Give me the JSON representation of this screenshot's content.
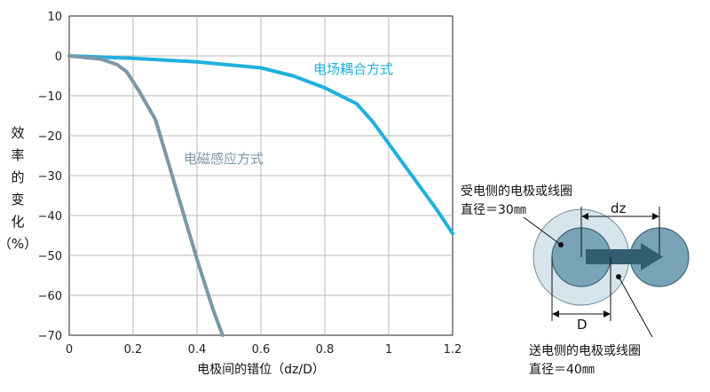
{
  "chart_data": {
    "type": "line",
    "title": "",
    "xlabel": "电极间的错位（dz/D）",
    "ylabel_chars": [
      "效",
      "率",
      "的",
      "变",
      "化",
      "（%）"
    ],
    "xlim": [
      0,
      1.2
    ],
    "ylim": [
      -70,
      10
    ],
    "x_ticks": [
      0,
      0.2,
      0.4,
      0.6,
      0.8,
      1,
      1.2
    ],
    "x_tick_labels": [
      "0",
      "0.2",
      "0.4",
      "0.6",
      "0.8",
      "1",
      "1.2"
    ],
    "y_ticks": [
      10,
      0,
      -10,
      -20,
      -30,
      -40,
      -50,
      -60,
      -70
    ],
    "y_tick_labels": [
      "10",
      "0",
      "−10",
      "−20",
      "−30",
      "−40",
      "−50",
      "−60",
      "−70"
    ],
    "grid": true,
    "series": [
      {
        "name": "电场耦合方式",
        "color": "#1fb0de",
        "points": [
          [
            0,
            0
          ],
          [
            0.2,
            -0.6
          ],
          [
            0.4,
            -1.5
          ],
          [
            0.6,
            -3.0
          ],
          [
            0.7,
            -5.0
          ],
          [
            0.8,
            -8.0
          ],
          [
            0.9,
            -12.0
          ],
          [
            0.95,
            -16.5
          ],
          [
            1.0,
            -22.0
          ],
          [
            1.05,
            -27.5
          ],
          [
            1.1,
            -33.0
          ],
          [
            1.15,
            -38.5
          ],
          [
            1.2,
            -44.5
          ]
        ]
      },
      {
        "name": "电磁感应方式",
        "color": "#7a98a8",
        "points": [
          [
            0,
            0
          ],
          [
            0.1,
            -0.8
          ],
          [
            0.15,
            -2.2
          ],
          [
            0.18,
            -4.0
          ],
          [
            0.22,
            -9.0
          ],
          [
            0.27,
            -16.0
          ],
          [
            0.3,
            -24.0
          ],
          [
            0.35,
            -37.5
          ],
          [
            0.4,
            -51.0
          ],
          [
            0.45,
            -63.5
          ],
          [
            0.48,
            -70.0
          ]
        ]
      }
    ]
  },
  "diagram": {
    "receiver_label_line1": "受电侧的电极或线圈",
    "receiver_label_line2": "直径＝30㎜",
    "sender_label_line1": "送电侧的电极或线圈",
    "sender_label_line2": "直径＝40㎜",
    "dz_label": "dz",
    "d_label": "D",
    "outer_fill": "#d6e4ec",
    "inner_fill": "#79a3b6",
    "arrow_color": "#335d70"
  }
}
